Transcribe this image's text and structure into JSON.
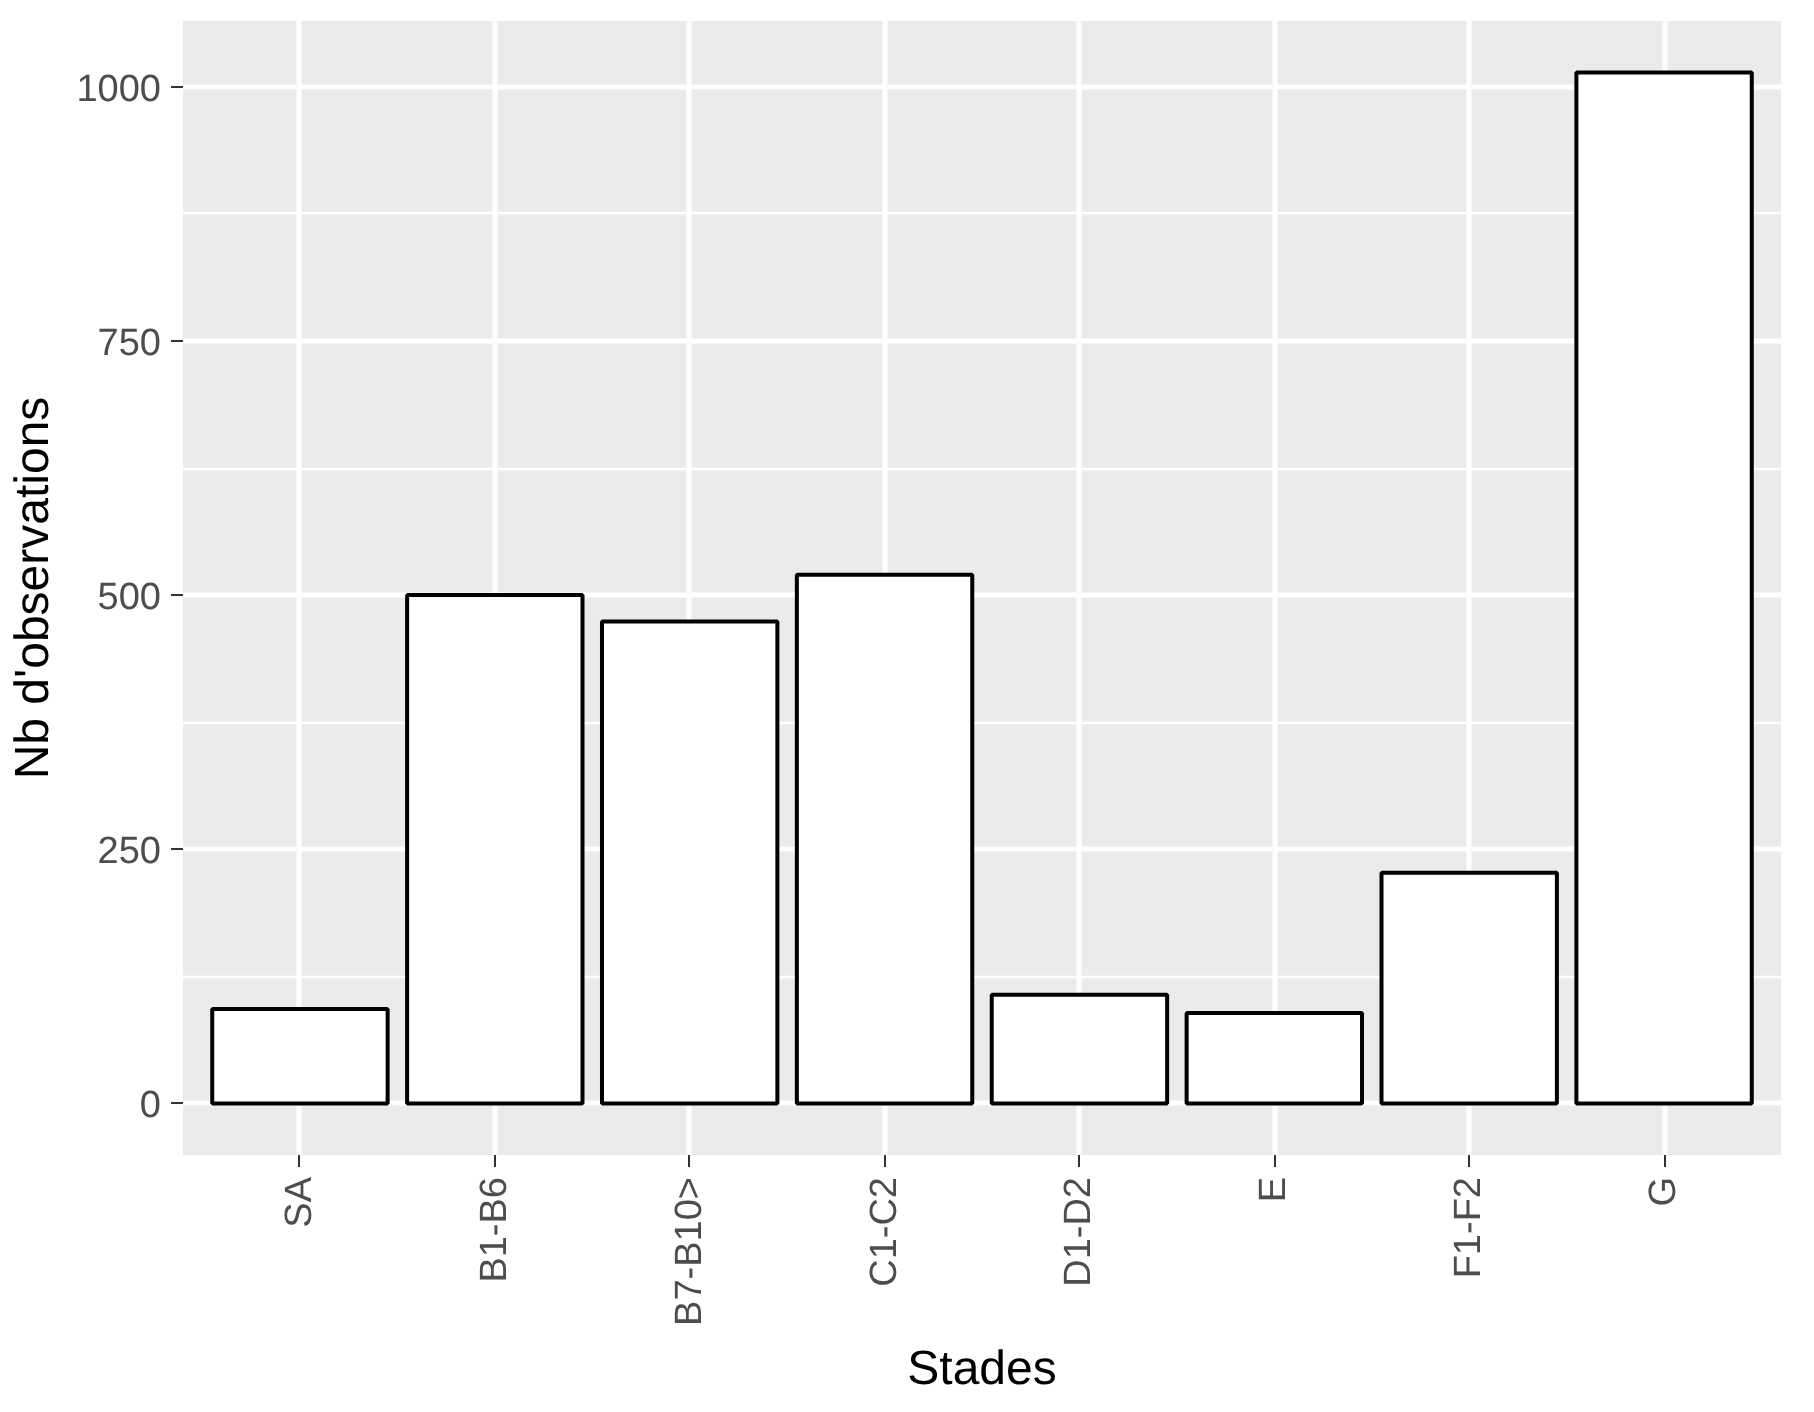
{
  "chart_data": {
    "type": "bar",
    "xlabel": "Stades",
    "ylabel": "Nb d'observations",
    "categories": [
      "SA",
      "B1-B6",
      "B7-B10>",
      "C1-C2",
      "D1-D2",
      "E",
      "F1-F2",
      "G"
    ],
    "values": [
      93,
      500,
      474,
      520,
      107,
      89,
      227,
      1014
    ],
    "color": "#ffffff",
    "ylim": [
      -50.7,
      1064.7
    ],
    "yticks": [
      0,
      250,
      500,
      750,
      1000
    ],
    "grid": true
  }
}
